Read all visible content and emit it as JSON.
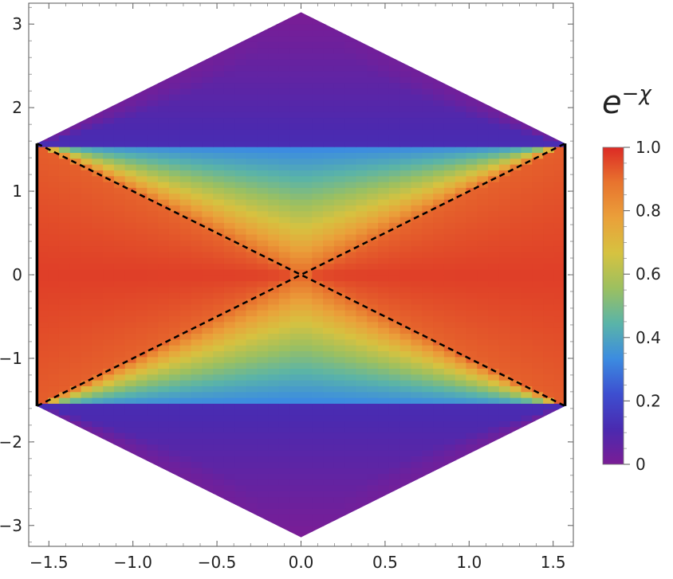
{
  "chart_data": {
    "type": "heatmap",
    "title": "",
    "xlabel": "",
    "ylabel": "",
    "xlim": [
      -1.62,
      1.62
    ],
    "ylim": [
      -3.25,
      3.25
    ],
    "x_ticks": [
      {
        "value": -1.5,
        "label": "−1.5"
      },
      {
        "value": -1.0,
        "label": "−1.0"
      },
      {
        "value": -0.5,
        "label": "−0.5"
      },
      {
        "value": 0.0,
        "label": "0.0"
      },
      {
        "value": 0.5,
        "label": "0.5"
      },
      {
        "value": 1.0,
        "label": "1.0"
      },
      {
        "value": 1.5,
        "label": "1.5"
      }
    ],
    "y_ticks": [
      {
        "value": -3,
        "label": "−3"
      },
      {
        "value": -2,
        "label": "−2"
      },
      {
        "value": -1,
        "label": "−1"
      },
      {
        "value": 0,
        "label": "0"
      },
      {
        "value": 1,
        "label": "1"
      },
      {
        "value": 2,
        "label": "2"
      },
      {
        "value": 3,
        "label": "3"
      }
    ],
    "region": {
      "shape": "hexagon",
      "vertices": [
        [
          -1.5708,
          1.5708
        ],
        [
          0,
          3.1416
        ],
        [
          1.5708,
          1.5708
        ],
        [
          1.5708,
          -1.5708
        ],
        [
          0,
          -3.1416
        ],
        [
          -1.5708,
          -1.5708
        ]
      ]
    },
    "field": {
      "description_of_values": "e^-chi ranges 0 to 1",
      "max_value": 1.0,
      "min_value": 0.0
    },
    "boundary_lines": [
      {
        "style": "solid",
        "points": [
          [
            -1.5708,
            -1.5708
          ],
          [
            -1.5708,
            1.5708
          ]
        ]
      },
      {
        "style": "solid",
        "points": [
          [
            1.5708,
            -1.5708
          ],
          [
            1.5708,
            1.5708
          ]
        ]
      },
      {
        "style": "dashed",
        "points": [
          [
            -1.5708,
            1.5708
          ],
          [
            1.5708,
            -1.5708
          ]
        ]
      },
      {
        "style": "dashed",
        "points": [
          [
            -1.5708,
            -1.5708
          ],
          [
            1.5708,
            1.5708
          ]
        ]
      }
    ],
    "colorbar": {
      "label": "e^{−χ}",
      "label_base": "e",
      "label_exponent": "−χ",
      "range": [
        0,
        1
      ],
      "ticks": [
        {
          "value": 0,
          "label": "0"
        },
        {
          "value": 0.2,
          "label": "0.2"
        },
        {
          "value": 0.4,
          "label": "0.4"
        },
        {
          "value": 0.6,
          "label": "0.6"
        },
        {
          "value": 0.8,
          "label": "0.8"
        },
        {
          "value": 1.0,
          "label": "1.0"
        }
      ],
      "colors": [
        "#7a1d95",
        "#4a2ab0",
        "#3d4fd0",
        "#3c8ce0",
        "#5ab4a8",
        "#9cc060",
        "#d6c240",
        "#eaa03a",
        "#e8742e",
        "#dc2a25"
      ]
    },
    "grid": false,
    "legend": "none"
  }
}
